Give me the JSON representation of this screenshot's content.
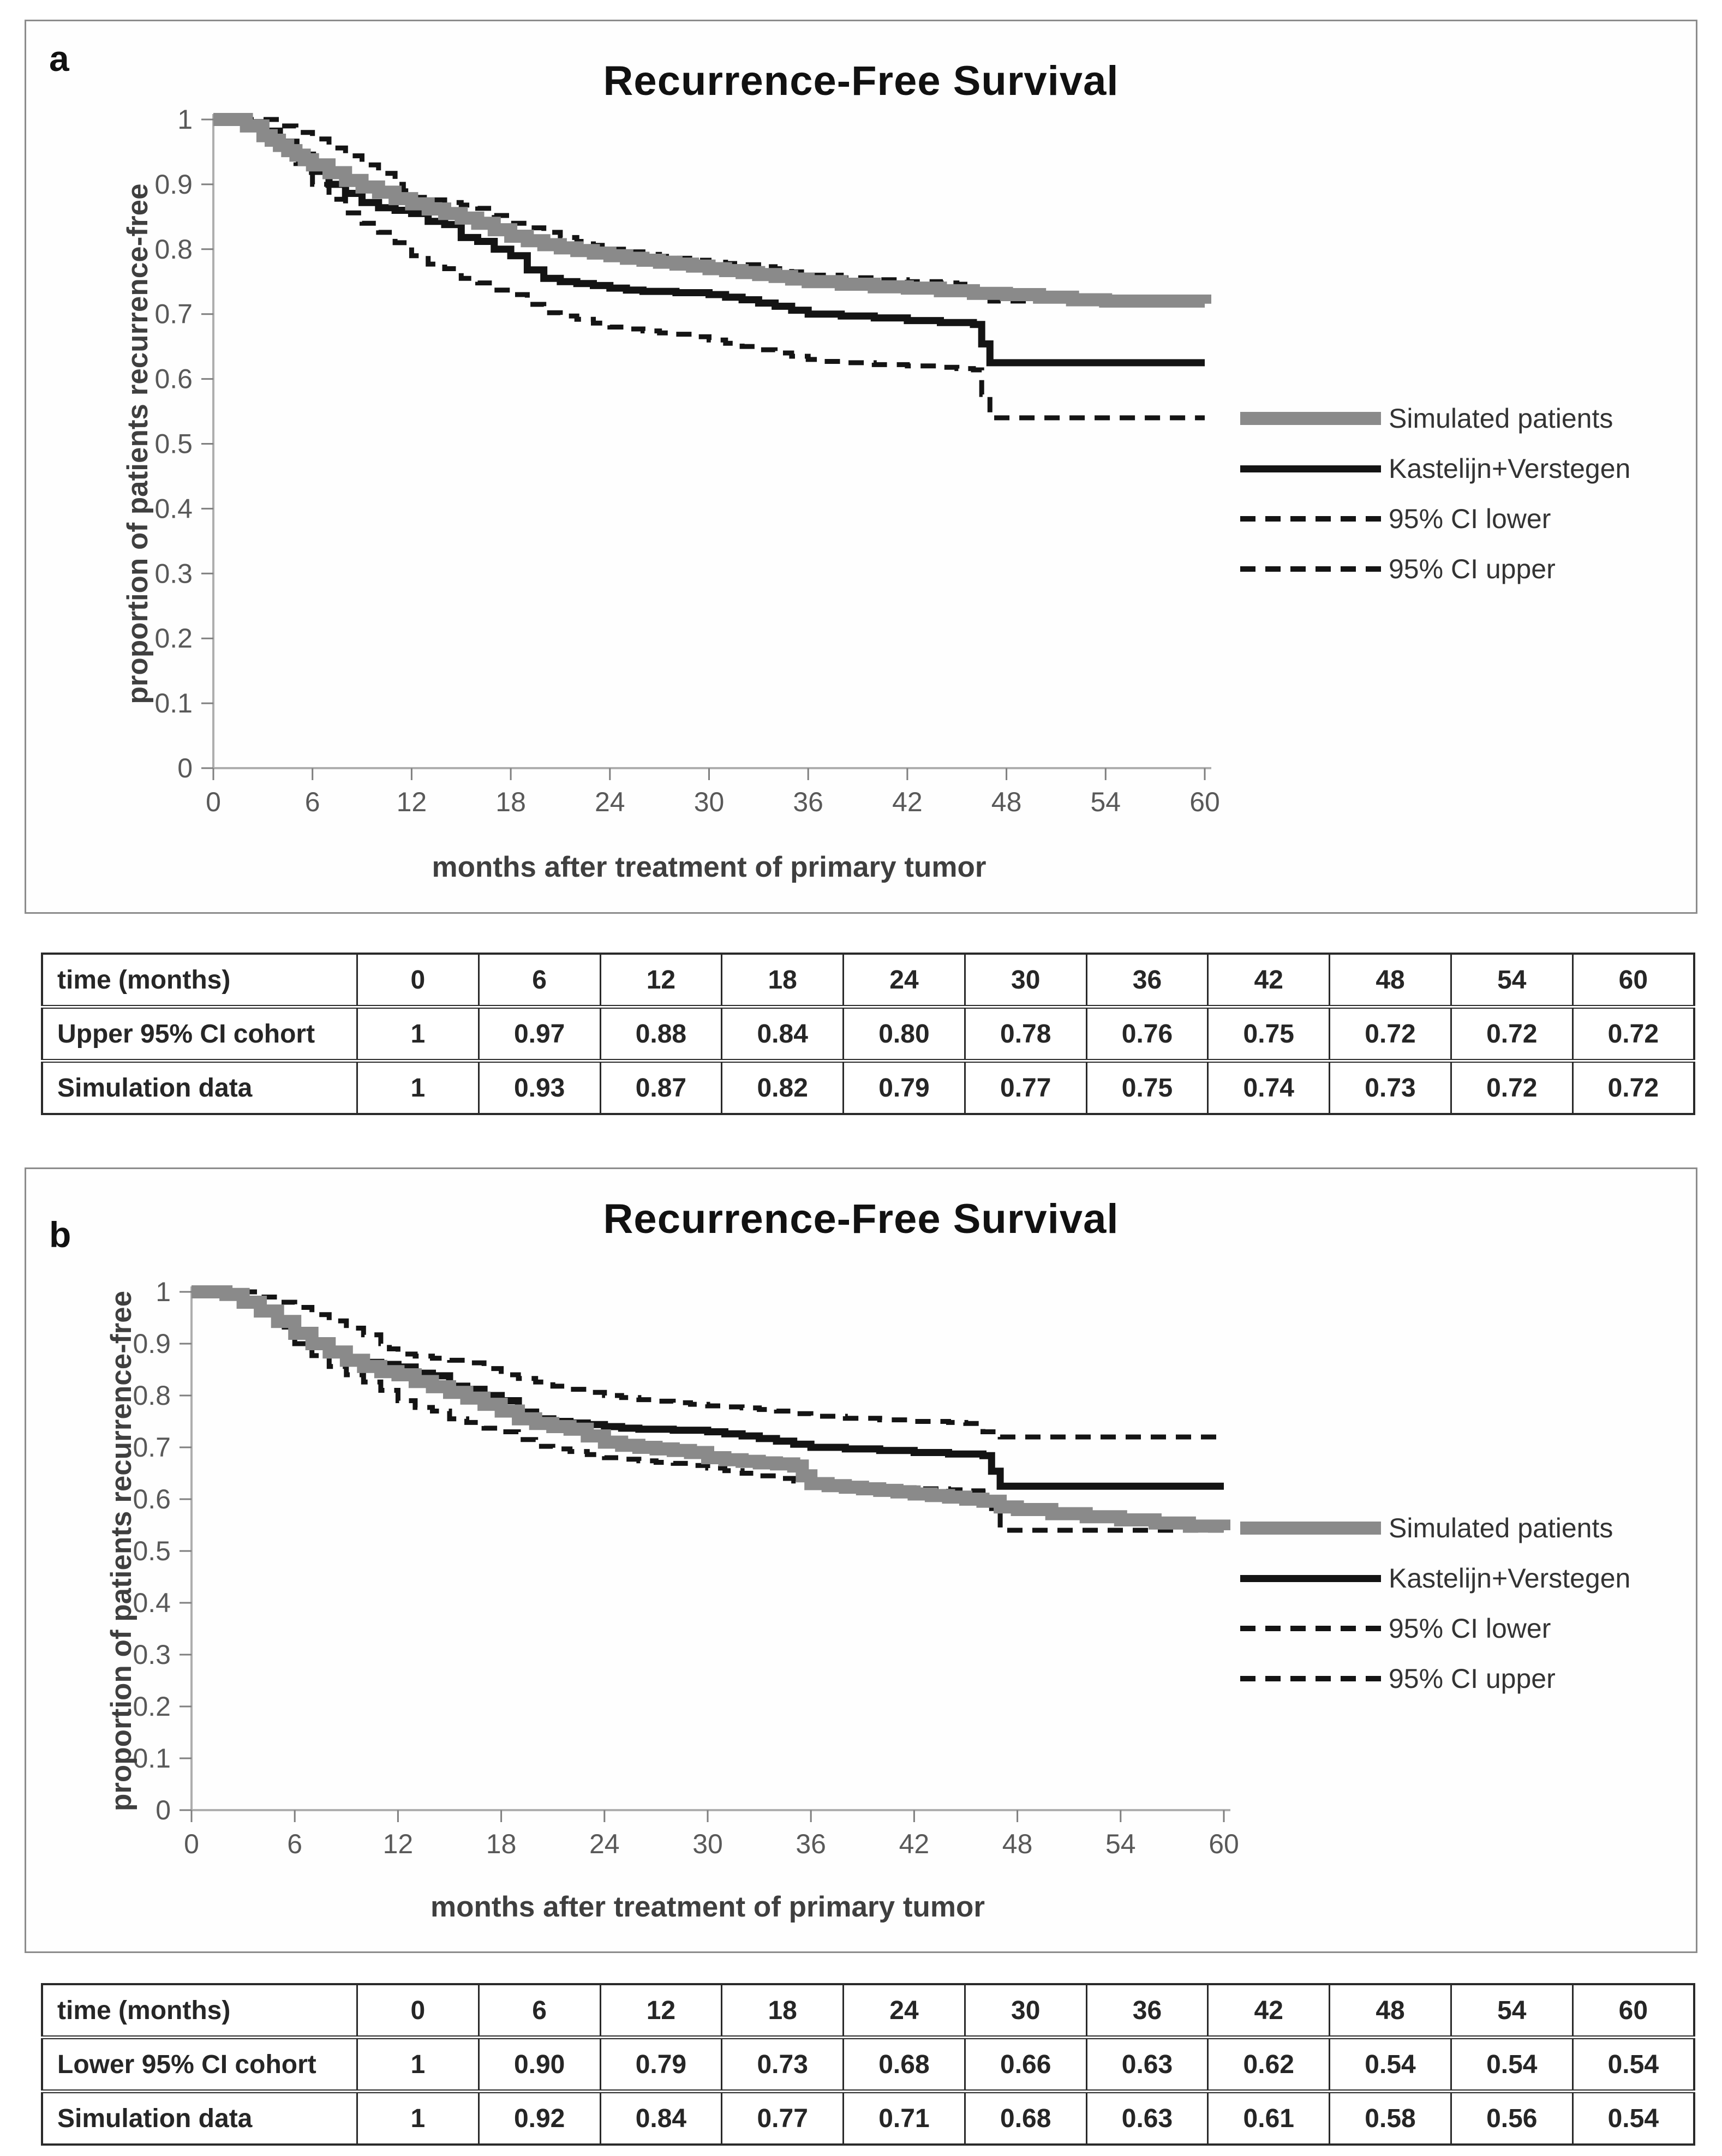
{
  "colors": {
    "simulated_line": "#8a8a8a",
    "cohort_line": "#141414",
    "ci_line": "#141414",
    "axis_line": "#aeaeae",
    "tick_mark": "#7f7f7f",
    "tick_text": "#595959",
    "axis_title_text": "#3f3f3f",
    "title_text": "#111111",
    "table_border": "#2a2a2a"
  },
  "panels": [
    {
      "label": "a",
      "title": "Recurrence-Free Survival",
      "x_axis": {
        "title": "months after treatment of primary tumor",
        "ticks": [
          "0",
          "6",
          "12",
          "18",
          "24",
          "30",
          "36",
          "42",
          "48",
          "54",
          "60"
        ],
        "min": 0,
        "max": 60
      },
      "y_axis": {
        "title": "proportion of patients recurrence-free",
        "ticks": [
          "1",
          "0.9",
          "0.8",
          "0.7",
          "0.6",
          "0.5",
          "0.4",
          "0.3",
          "0.2",
          "0.1",
          "0"
        ],
        "min": 0,
        "max": 1
      },
      "legend": [
        {
          "label": "Simulated patients",
          "style": "thick-gray"
        },
        {
          "label": "Kastelijn+Verstegen",
          "style": "solid-black"
        },
        {
          "label": "95% CI lower",
          "style": "dashed"
        },
        {
          "label": "95% CI upper",
          "style": "dashed"
        }
      ],
      "series_order": [
        "ci_upper",
        "ci_lower",
        "kv",
        "sim_a"
      ]
    },
    {
      "label": "b",
      "title": "Recurrence-Free Survival",
      "x_axis": {
        "title": "months after treatment of primary tumor",
        "ticks": [
          "0",
          "6",
          "12",
          "18",
          "24",
          "30",
          "36",
          "42",
          "48",
          "54",
          "60"
        ],
        "min": 0,
        "max": 60
      },
      "y_axis": {
        "title": "proportion of patients recurrence-free",
        "ticks": [
          "1",
          "0.9",
          "0.8",
          "0.7",
          "0.6",
          "0.5",
          "0.4",
          "0.3",
          "0.2",
          "0.1",
          "0"
        ],
        "min": 0,
        "max": 1
      },
      "legend": [
        {
          "label": "Simulated patients",
          "style": "thick-gray"
        },
        {
          "label": "Kastelijn+Verstegen",
          "style": "solid-black"
        },
        {
          "label": "95% CI lower",
          "style": "dashed"
        },
        {
          "label": "95% CI upper",
          "style": "dashed"
        }
      ],
      "series_order": [
        "ci_upper",
        "ci_lower",
        "kv",
        "sim_b"
      ]
    }
  ],
  "curves": {
    "sim_a": [
      [
        0,
        1
      ],
      [
        1.5,
        1
      ],
      [
        2,
        0.99
      ],
      [
        3,
        0.975
      ],
      [
        3.5,
        0.968
      ],
      [
        4,
        0.96
      ],
      [
        4.5,
        0.952
      ],
      [
        5,
        0.945
      ],
      [
        5.5,
        0.938
      ],
      [
        6,
        0.93
      ],
      [
        7,
        0.918
      ],
      [
        8,
        0.906
      ],
      [
        9,
        0.896
      ],
      [
        10,
        0.888
      ],
      [
        11,
        0.878
      ],
      [
        12,
        0.87
      ],
      [
        13,
        0.862
      ],
      [
        14,
        0.855
      ],
      [
        15,
        0.848
      ],
      [
        16,
        0.84
      ],
      [
        17,
        0.83
      ],
      [
        18,
        0.82
      ],
      [
        19,
        0.813
      ],
      [
        20,
        0.807
      ],
      [
        21,
        0.802
      ],
      [
        22,
        0.798
      ],
      [
        23,
        0.794
      ],
      [
        24,
        0.79
      ],
      [
        25,
        0.786
      ],
      [
        26,
        0.783
      ],
      [
        27,
        0.78
      ],
      [
        28,
        0.777
      ],
      [
        29,
        0.774
      ],
      [
        30,
        0.77
      ],
      [
        31,
        0.767
      ],
      [
        32,
        0.764
      ],
      [
        33,
        0.761
      ],
      [
        34,
        0.758
      ],
      [
        35,
        0.754
      ],
      [
        36,
        0.75
      ],
      [
        38,
        0.746
      ],
      [
        40,
        0.742
      ],
      [
        42,
        0.74
      ],
      [
        44,
        0.736
      ],
      [
        46,
        0.732
      ],
      [
        48,
        0.73
      ],
      [
        50,
        0.726
      ],
      [
        52,
        0.722
      ],
      [
        54,
        0.72
      ],
      [
        60,
        0.716
      ]
    ],
    "sim_b": [
      [
        0,
        1
      ],
      [
        1.5,
        1
      ],
      [
        2,
        0.995
      ],
      [
        3,
        0.98
      ],
      [
        4,
        0.963
      ],
      [
        5,
        0.943
      ],
      [
        6,
        0.92
      ],
      [
        7,
        0.9
      ],
      [
        8,
        0.884
      ],
      [
        9,
        0.868
      ],
      [
        10,
        0.856
      ],
      [
        11,
        0.846
      ],
      [
        12,
        0.84
      ],
      [
        13,
        0.827
      ],
      [
        14,
        0.817
      ],
      [
        15,
        0.806
      ],
      [
        16,
        0.795
      ],
      [
        17,
        0.783
      ],
      [
        18,
        0.77
      ],
      [
        19,
        0.755
      ],
      [
        20,
        0.746
      ],
      [
        21,
        0.74
      ],
      [
        22,
        0.735
      ],
      [
        23,
        0.722
      ],
      [
        24,
        0.71
      ],
      [
        25,
        0.704
      ],
      [
        26,
        0.7
      ],
      [
        27,
        0.697
      ],
      [
        28,
        0.694
      ],
      [
        29,
        0.69
      ],
      [
        30,
        0.68
      ],
      [
        31,
        0.676
      ],
      [
        32,
        0.673
      ],
      [
        33,
        0.67
      ],
      [
        34,
        0.668
      ],
      [
        35,
        0.664
      ],
      [
        35.5,
        0.645
      ],
      [
        36,
        0.63
      ],
      [
        37,
        0.626
      ],
      [
        38,
        0.623
      ],
      [
        39,
        0.62
      ],
      [
        40,
        0.617
      ],
      [
        41,
        0.614
      ],
      [
        42,
        0.61
      ],
      [
        43,
        0.607
      ],
      [
        44,
        0.604
      ],
      [
        45,
        0.6
      ],
      [
        46,
        0.596
      ],
      [
        47,
        0.585
      ],
      [
        48,
        0.58
      ],
      [
        50,
        0.572
      ],
      [
        52,
        0.566
      ],
      [
        54,
        0.56
      ],
      [
        56,
        0.554
      ],
      [
        58,
        0.548
      ],
      [
        60,
        0.54
      ]
    ],
    "kv": [
      [
        0,
        1
      ],
      [
        1.5,
        1
      ],
      [
        2,
        0.995
      ],
      [
        3,
        0.982
      ],
      [
        4,
        0.965
      ],
      [
        5,
        0.945
      ],
      [
        6,
        0.92
      ],
      [
        7,
        0.9
      ],
      [
        8,
        0.886
      ],
      [
        9,
        0.872
      ],
      [
        10,
        0.864
      ],
      [
        11,
        0.86
      ],
      [
        12,
        0.855
      ],
      [
        13,
        0.843
      ],
      [
        14,
        0.838
      ],
      [
        15,
        0.818
      ],
      [
        16,
        0.812
      ],
      [
        17,
        0.8
      ],
      [
        18,
        0.79
      ],
      [
        19,
        0.768
      ],
      [
        20,
        0.755
      ],
      [
        21,
        0.75
      ],
      [
        22,
        0.747
      ],
      [
        23,
        0.744
      ],
      [
        24,
        0.74
      ],
      [
        25,
        0.737
      ],
      [
        26,
        0.735
      ],
      [
        28,
        0.733
      ],
      [
        30,
        0.73
      ],
      [
        31,
        0.726
      ],
      [
        32,
        0.722
      ],
      [
        33,
        0.717
      ],
      [
        34,
        0.712
      ],
      [
        35,
        0.706
      ],
      [
        36,
        0.7
      ],
      [
        38,
        0.697
      ],
      [
        40,
        0.694
      ],
      [
        42,
        0.69
      ],
      [
        44,
        0.687
      ],
      [
        46,
        0.684
      ],
      [
        46.5,
        0.654
      ],
      [
        47,
        0.625
      ],
      [
        60,
        0.625
      ]
    ],
    "ci_upper": [
      [
        0,
        1
      ],
      [
        3,
        1
      ],
      [
        4,
        0.99
      ],
      [
        5,
        0.98
      ],
      [
        6,
        0.97
      ],
      [
        7,
        0.956
      ],
      [
        8,
        0.944
      ],
      [
        9,
        0.93
      ],
      [
        10,
        0.917
      ],
      [
        11,
        0.9
      ],
      [
        11.5,
        0.89
      ],
      [
        12,
        0.88
      ],
      [
        13,
        0.876
      ],
      [
        14,
        0.872
      ],
      [
        15,
        0.868
      ],
      [
        16,
        0.863
      ],
      [
        17,
        0.852
      ],
      [
        18,
        0.84
      ],
      [
        19,
        0.833
      ],
      [
        20,
        0.826
      ],
      [
        21,
        0.818
      ],
      [
        22,
        0.812
      ],
      [
        23,
        0.806
      ],
      [
        24,
        0.8
      ],
      [
        25,
        0.796
      ],
      [
        26,
        0.792
      ],
      [
        27,
        0.789
      ],
      [
        28,
        0.786
      ],
      [
        29,
        0.783
      ],
      [
        30,
        0.78
      ],
      [
        31,
        0.778
      ],
      [
        32,
        0.776
      ],
      [
        33,
        0.773
      ],
      [
        34,
        0.77
      ],
      [
        35,
        0.765
      ],
      [
        36,
        0.76
      ],
      [
        38,
        0.756
      ],
      [
        40,
        0.753
      ],
      [
        42,
        0.75
      ],
      [
        44,
        0.748
      ],
      [
        45,
        0.746
      ],
      [
        46,
        0.73
      ],
      [
        47,
        0.72
      ],
      [
        60,
        0.72
      ]
    ],
    "ci_lower": [
      [
        0,
        1
      ],
      [
        2,
        0.995
      ],
      [
        3,
        0.98
      ],
      [
        4,
        0.958
      ],
      [
        5,
        0.932
      ],
      [
        6,
        0.9
      ],
      [
        7,
        0.877
      ],
      [
        8,
        0.856
      ],
      [
        9,
        0.84
      ],
      [
        10,
        0.826
      ],
      [
        11,
        0.81
      ],
      [
        12,
        0.79
      ],
      [
        13,
        0.777
      ],
      [
        14,
        0.77
      ],
      [
        15,
        0.755
      ],
      [
        16,
        0.748
      ],
      [
        17,
        0.737
      ],
      [
        18,
        0.73
      ],
      [
        19,
        0.715
      ],
      [
        20,
        0.702
      ],
      [
        21,
        0.697
      ],
      [
        22,
        0.692
      ],
      [
        23,
        0.686
      ],
      [
        24,
        0.68
      ],
      [
        25,
        0.677
      ],
      [
        26,
        0.674
      ],
      [
        27,
        0.671
      ],
      [
        28,
        0.669
      ],
      [
        29,
        0.665
      ],
      [
        30,
        0.66
      ],
      [
        31,
        0.655
      ],
      [
        32,
        0.65
      ],
      [
        33,
        0.645
      ],
      [
        34,
        0.64
      ],
      [
        35,
        0.635
      ],
      [
        36,
        0.63
      ],
      [
        37,
        0.627
      ],
      [
        38,
        0.625
      ],
      [
        40,
        0.622
      ],
      [
        42,
        0.62
      ],
      [
        44,
        0.618
      ],
      [
        45,
        0.616
      ],
      [
        46,
        0.614
      ],
      [
        46.5,
        0.576
      ],
      [
        47,
        0.54
      ],
      [
        60,
        0.54
      ]
    ]
  },
  "tables": [
    {
      "rows": [
        [
          "time (months)",
          "0",
          "6",
          "12",
          "18",
          "24",
          "30",
          "36",
          "42",
          "48",
          "54",
          "60"
        ],
        [
          "Upper 95% CI cohort",
          "1",
          "0.97",
          "0.88",
          "0.84",
          "0.80",
          "0.78",
          "0.76",
          "0.75",
          "0.72",
          "0.72",
          "0.72"
        ],
        [
          "Simulation data",
          "1",
          "0.93",
          "0.87",
          "0.82",
          "0.79",
          "0.77",
          "0.75",
          "0.74",
          "0.73",
          "0.72",
          "0.72"
        ]
      ]
    },
    {
      "rows": [
        [
          "time (months)",
          "0",
          "6",
          "12",
          "18",
          "24",
          "30",
          "36",
          "42",
          "48",
          "54",
          "60"
        ],
        [
          "Lower 95% CI cohort",
          "1",
          "0.90",
          "0.79",
          "0.73",
          "0.68",
          "0.66",
          "0.63",
          "0.62",
          "0.54",
          "0.54",
          "0.54"
        ],
        [
          "Simulation data",
          "1",
          "0.92",
          "0.84",
          "0.77",
          "0.71",
          "0.68",
          "0.63",
          "0.61",
          "0.58",
          "0.56",
          "0.54"
        ]
      ]
    }
  ],
  "chart_data": [
    {
      "type": "line",
      "subtype": "kaplan-meier-step",
      "panel": "a",
      "title": "Recurrence-Free Survival",
      "xlabel": "months after treatment of primary tumor",
      "ylabel": "proportion of patients recurrence-free",
      "x": [
        0,
        6,
        12,
        18,
        24,
        30,
        36,
        42,
        48,
        54,
        60
      ],
      "xlim": [
        0,
        60
      ],
      "ylim": [
        0,
        1
      ],
      "grid": false,
      "legend_position": "right",
      "series": [
        {
          "name": "Simulated patients",
          "style": "thick solid gray",
          "values": [
            1,
            0.93,
            0.87,
            0.82,
            0.79,
            0.77,
            0.75,
            0.74,
            0.73,
            0.72,
            0.72
          ]
        },
        {
          "name": "Kastelijn+Verstegen",
          "style": "solid black",
          "values": [
            1,
            0.92,
            0.86,
            0.79,
            0.74,
            0.73,
            0.7,
            0.69,
            0.62,
            0.62,
            0.62
          ]
        },
        {
          "name": "95% CI lower",
          "style": "dashed black",
          "values": [
            1,
            0.9,
            0.79,
            0.73,
            0.68,
            0.66,
            0.63,
            0.62,
            0.54,
            0.54,
            0.54
          ]
        },
        {
          "name": "95% CI upper",
          "style": "dashed black",
          "values": [
            1,
            0.97,
            0.88,
            0.84,
            0.8,
            0.78,
            0.76,
            0.75,
            0.72,
            0.72,
            0.72
          ]
        }
      ]
    },
    {
      "type": "line",
      "subtype": "kaplan-meier-step",
      "panel": "b",
      "title": "Recurrence-Free Survival",
      "xlabel": "months after treatment of primary tumor",
      "ylabel": "proportion of patients recurrence-free",
      "x": [
        0,
        6,
        12,
        18,
        24,
        30,
        36,
        42,
        48,
        54,
        60
      ],
      "xlim": [
        0,
        60
      ],
      "ylim": [
        0,
        1
      ],
      "grid": false,
      "legend_position": "right",
      "series": [
        {
          "name": "Simulated patients",
          "style": "thick solid gray",
          "values": [
            1,
            0.92,
            0.84,
            0.77,
            0.71,
            0.68,
            0.63,
            0.61,
            0.58,
            0.56,
            0.54
          ]
        },
        {
          "name": "Kastelijn+Verstegen",
          "style": "solid black",
          "values": [
            1,
            0.92,
            0.86,
            0.79,
            0.74,
            0.73,
            0.7,
            0.69,
            0.62,
            0.62,
            0.62
          ]
        },
        {
          "name": "95% CI lower",
          "style": "dashed black",
          "values": [
            1,
            0.9,
            0.79,
            0.73,
            0.68,
            0.66,
            0.63,
            0.62,
            0.54,
            0.54,
            0.54
          ]
        },
        {
          "name": "95% CI upper",
          "style": "dashed black",
          "values": [
            1,
            0.97,
            0.88,
            0.84,
            0.8,
            0.78,
            0.76,
            0.75,
            0.72,
            0.72,
            0.72
          ]
        }
      ]
    }
  ]
}
